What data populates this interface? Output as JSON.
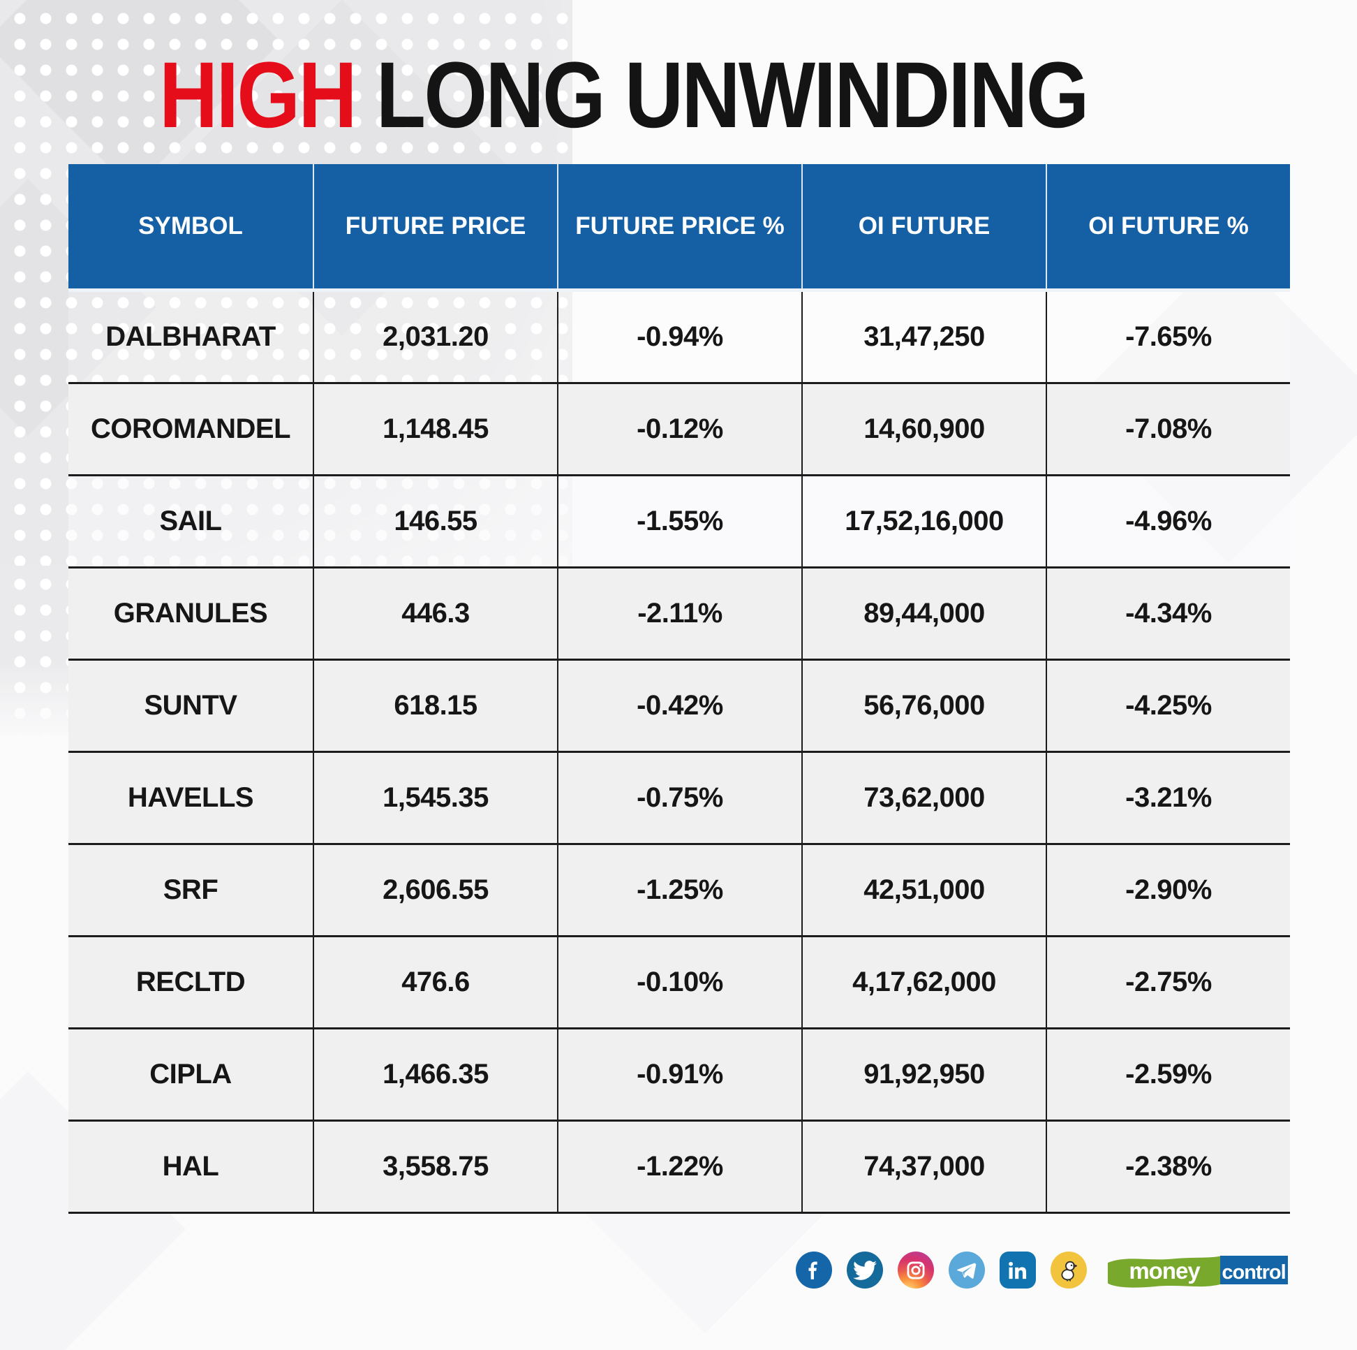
{
  "title": {
    "highlight": "HIGH",
    "rest": " LONG UNWINDING"
  },
  "table": {
    "columns": [
      "SYMBOL",
      "FUTURE PRICE",
      "FUTURE PRICE %",
      "OI FUTURE",
      "OI FUTURE %"
    ],
    "rows": [
      [
        "DALBHARAT",
        "2,031.20",
        "-0.94%",
        "31,47,250",
        "-7.65%"
      ],
      [
        "COROMANDEL",
        "1,148.45",
        "-0.12%",
        "14,60,900",
        "-7.08%"
      ],
      [
        "SAIL",
        "146.55",
        "-1.55%",
        "17,52,16,000",
        "-4.96%"
      ],
      [
        "GRANULES",
        "446.3",
        "-2.11%",
        "89,44,000",
        "-4.34%"
      ],
      [
        "SUNTV",
        "618.15",
        "-0.42%",
        "56,76,000",
        "-4.25%"
      ],
      [
        "HAVELLS",
        "1,545.35",
        "-0.75%",
        "73,62,000",
        "-3.21%"
      ],
      [
        "SRF",
        "2,606.55",
        "-1.25%",
        "42,51,000",
        "-2.90%"
      ],
      [
        "RECLTD",
        "476.6",
        "-0.10%",
        "4,17,62,000",
        "-2.75%"
      ],
      [
        "CIPLA",
        "1,466.35",
        "-0.91%",
        "91,92,950",
        "-2.59%"
      ],
      [
        "HAL",
        "3,558.75",
        "-1.22%",
        "74,37,000",
        "-2.38%"
      ]
    ]
  },
  "chart_data": {
    "type": "table",
    "title": "HIGH LONG UNWINDING",
    "columns": [
      "SYMBOL",
      "FUTURE PRICE",
      "FUTURE PRICE %",
      "OI FUTURE",
      "OI FUTURE %"
    ],
    "rows": [
      {
        "symbol": "DALBHARAT",
        "future_price": 2031.2,
        "future_price_pct": -0.94,
        "oi_future": "31,47,250",
        "oi_future_pct": -7.65
      },
      {
        "symbol": "COROMANDEL",
        "future_price": 1148.45,
        "future_price_pct": -0.12,
        "oi_future": "14,60,900",
        "oi_future_pct": -7.08
      },
      {
        "symbol": "SAIL",
        "future_price": 146.55,
        "future_price_pct": -1.55,
        "oi_future": "17,52,16,000",
        "oi_future_pct": -4.96
      },
      {
        "symbol": "GRANULES",
        "future_price": 446.3,
        "future_price_pct": -2.11,
        "oi_future": "89,44,000",
        "oi_future_pct": -4.34
      },
      {
        "symbol": "SUNTV",
        "future_price": 618.15,
        "future_price_pct": -0.42,
        "oi_future": "56,76,000",
        "oi_future_pct": -4.25
      },
      {
        "symbol": "HAVELLS",
        "future_price": 1545.35,
        "future_price_pct": -0.75,
        "oi_future": "73,62,000",
        "oi_future_pct": -3.21
      },
      {
        "symbol": "SRF",
        "future_price": 2606.55,
        "future_price_pct": -1.25,
        "oi_future": "42,51,000",
        "oi_future_pct": -2.9
      },
      {
        "symbol": "RECLTD",
        "future_price": 476.6,
        "future_price_pct": -0.1,
        "oi_future": "4,17,62,000",
        "oi_future_pct": -2.75
      },
      {
        "symbol": "CIPLA",
        "future_price": 1466.35,
        "future_price_pct": -0.91,
        "oi_future": "91,92,950",
        "oi_future_pct": -2.59
      },
      {
        "symbol": "HAL",
        "future_price": 3558.75,
        "future_price_pct": -1.22,
        "oi_future": "74,37,000",
        "oi_future_pct": -2.38
      }
    ]
  },
  "footer": {
    "social_icons": [
      "facebook-icon",
      "twitter-icon",
      "instagram-icon",
      "telegram-icon",
      "linkedin-icon",
      "koo-icon"
    ],
    "logo": {
      "part1": "money",
      "part2": "control"
    }
  },
  "colors": {
    "header_blue": "#1560a5",
    "title_red": "#e60d1a",
    "row_gray": "#f0f0f1",
    "border_dark": "#1c1c1c",
    "logo_green": "#78a92d",
    "logo_blue": "#1465a8",
    "koo_yellow": "#f2c33c"
  }
}
